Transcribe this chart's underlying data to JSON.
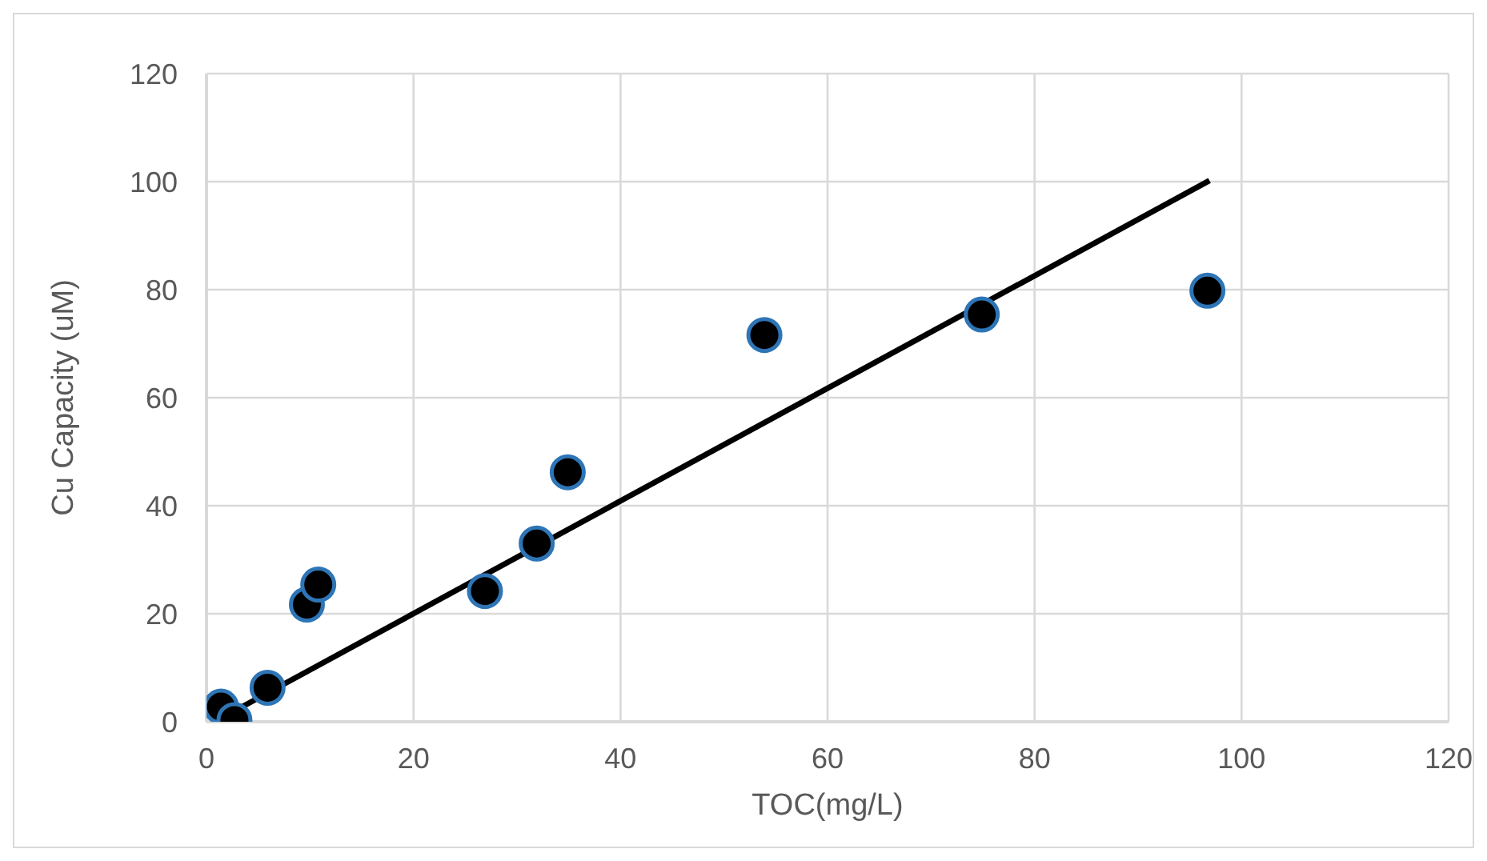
{
  "chart_data": {
    "type": "scatter",
    "xlabel": "TOC(mg/L)",
    "ylabel": "Cu Capacity (uM)",
    "series": [
      {
        "color": "#000000",
        "marker": "circle",
        "x": [
          1.4,
          2.7,
          5.9,
          9.7,
          10.8,
          26.9,
          31.9,
          34.9,
          53.9,
          74.9,
          96.7
        ],
        "values": [
          2.8,
          0.3,
          6.3,
          21.7,
          25.4,
          24.2,
          33,
          46.2,
          71.6,
          75.4,
          79.8
        ]
      },
      {
        "type": "line",
        "marker": "none",
        "color": "#000000",
        "x": [
          2.7,
          96.9
        ],
        "values": [
          2,
          100.2
        ]
      }
    ],
    "xlim": [
      0,
      120
    ],
    "xticks": [
      0,
      20,
      40,
      60,
      80,
      100,
      120
    ],
    "ylim": [
      0,
      120
    ],
    "yticks": [
      0,
      20,
      40,
      60,
      80,
      100,
      120
    ],
    "grid": true
  }
}
